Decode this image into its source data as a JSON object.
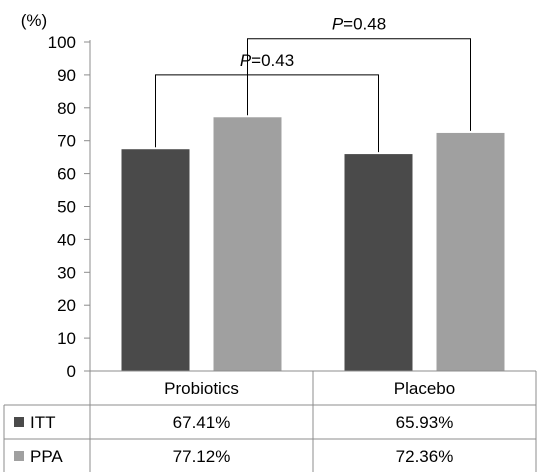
{
  "chart_data": {
    "type": "bar",
    "categories": [
      "Probiotics",
      "Placebo"
    ],
    "series": [
      {
        "name": "ITT",
        "values": [
          67.41,
          65.93
        ],
        "labels": [
          "67.41%",
          "65.93%"
        ],
        "color": "#4a4a4a"
      },
      {
        "name": "PPA",
        "values": [
          77.12,
          72.36
        ],
        "labels": [
          "77.12%",
          "72.36%"
        ],
        "color": "#a0a0a0"
      }
    ],
    "yunit": "(%)",
    "ylim": [
      0,
      100
    ],
    "yticks": [
      0,
      10,
      20,
      30,
      40,
      50,
      60,
      70,
      80,
      90,
      100
    ],
    "grid": false,
    "legend": "data-table-left",
    "annotations": [
      {
        "italic": "P",
        "text": "=0.43",
        "between": "ITT"
      },
      {
        "italic": "P",
        "text": "=0.48",
        "between": "PPA"
      }
    ]
  }
}
